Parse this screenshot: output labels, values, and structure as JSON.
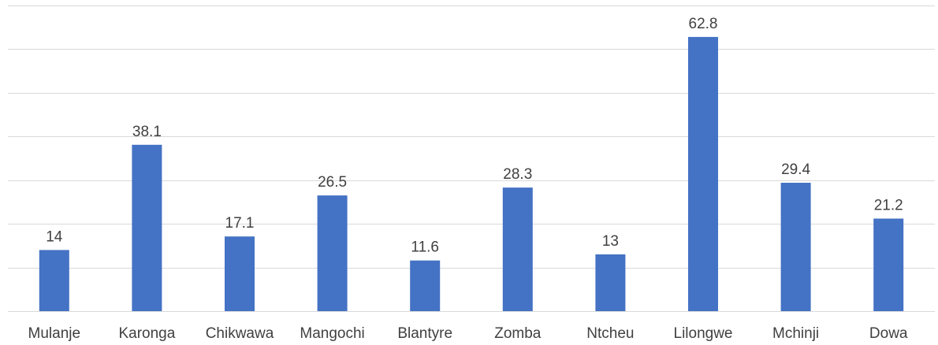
{
  "chart_data": {
    "type": "bar",
    "title": "",
    "xlabel": "",
    "ylabel": "",
    "categories": [
      "Mulanje",
      "Karonga",
      "Chikwawa",
      "Mangochi",
      "Blantyre",
      "Zomba",
      "Ntcheu",
      "Lilongwe",
      "Mchinji",
      "Dowa"
    ],
    "values": [
      14,
      38.1,
      17.1,
      26.5,
      11.6,
      28.3,
      13,
      62.8,
      29.4,
      21.2
    ],
    "ylim": [
      0,
      70
    ],
    "gridline_step": 10,
    "y_axis_labels_shown": false,
    "grid": true,
    "legend": "none",
    "colors": {
      "bar": "#4472c4",
      "gridline": "#d9d9d9",
      "text": "#404040"
    }
  }
}
